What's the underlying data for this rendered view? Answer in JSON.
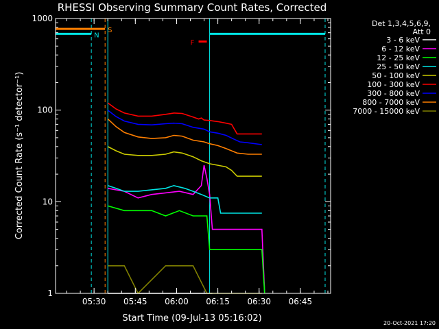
{
  "chart_data": {
    "type": "line",
    "title": "RHESSI Observing Summary Count Rates, Corrected",
    "xlabel": "Start Time (09-Jul-13 05:16:02)",
    "ylabel": "Corrected Count Rate (s⁻¹ detector⁻¹)",
    "x_range_min": [
      0,
      100
    ],
    "y_scale": "log",
    "ylim": [
      1,
      1000
    ],
    "y_ticks": [
      1,
      10,
      100,
      1000
    ],
    "y_tick_labels": [
      "1",
      "10",
      "100",
      "1000"
    ],
    "x_ticks_min": [
      14,
      29,
      44,
      59,
      74,
      89
    ],
    "x_tick_labels": [
      "05:30",
      "05:45",
      "06:00",
      "06:15",
      "06:30",
      "06:45"
    ],
    "legend": {
      "placement": "right",
      "header": [
        "Det 1,3,4,5,6,9,",
        "Att 0"
      ]
    },
    "markers": [
      {
        "label": "N",
        "color": "#00e5e5",
        "x_start": 0,
        "x_end": 13,
        "y": 680
      },
      {
        "label": "S",
        "color": "#ff7f00",
        "x_start": 0,
        "x_end": 18,
        "y": 770
      },
      {
        "label": "F",
        "color": "#ff0000",
        "x_start": 52,
        "x_end": 55,
        "y": 560
      },
      {
        "label": "",
        "color": "#00e5e5",
        "x_start": 56,
        "x_end": 98,
        "y": 680
      }
    ],
    "vlines": [
      {
        "x": 0,
        "color": "#00e5e5",
        "style": "solid"
      },
      {
        "x": 13,
        "color": "#00e5e5",
        "style": "dashed"
      },
      {
        "x": 18,
        "color": "#ff7f00",
        "style": "dashed"
      },
      {
        "x": 19,
        "color": "#00e5e5",
        "style": "solid"
      },
      {
        "x": 56,
        "color": "#00e5e5",
        "style": "solid"
      },
      {
        "x": 98,
        "color": "#00e5e5",
        "style": "dashed"
      }
    ],
    "series": [
      {
        "name": "3 - 6 keV",
        "color": "#ffffff",
        "points": [
          [
            19,
            1
          ],
          [
            56,
            1
          ],
          [
            57,
            1
          ]
        ]
      },
      {
        "name": "6 - 12 keV",
        "color": "#ff00ff",
        "points": [
          [
            19,
            14
          ],
          [
            25,
            13
          ],
          [
            30,
            11
          ],
          [
            35,
            12
          ],
          [
            40,
            12.5
          ],
          [
            45,
            13
          ],
          [
            50,
            12
          ],
          [
            53,
            15
          ],
          [
            54,
            25
          ],
          [
            55,
            18
          ],
          [
            56,
            12
          ],
          [
            57,
            5
          ],
          [
            70,
            5
          ],
          [
            75,
            5
          ],
          [
            76,
            1
          ]
        ]
      },
      {
        "name": "12 - 25 keV",
        "color": "#00ff00",
        "points": [
          [
            19,
            9
          ],
          [
            25,
            8
          ],
          [
            30,
            8
          ],
          [
            35,
            8
          ],
          [
            40,
            7
          ],
          [
            45,
            8
          ],
          [
            50,
            7
          ],
          [
            55,
            7
          ],
          [
            56,
            3
          ],
          [
            75,
            3
          ],
          [
            76,
            1
          ]
        ]
      },
      {
        "name": "25 - 50 keV",
        "color": "#00e5e5",
        "points": [
          [
            19,
            15
          ],
          [
            22,
            14
          ],
          [
            25,
            13
          ],
          [
            30,
            13
          ],
          [
            35,
            13.5
          ],
          [
            40,
            14
          ],
          [
            43,
            15
          ],
          [
            47,
            14
          ],
          [
            50,
            13
          ],
          [
            53,
            12
          ],
          [
            56,
            11
          ],
          [
            59,
            11
          ],
          [
            60,
            7.5
          ],
          [
            75,
            7.5
          ]
        ]
      },
      {
        "name": "50 - 100 keV",
        "color": "#cccc00",
        "points": [
          [
            19,
            40
          ],
          [
            22,
            36
          ],
          [
            25,
            33
          ],
          [
            30,
            32
          ],
          [
            35,
            32
          ],
          [
            40,
            33
          ],
          [
            43,
            35
          ],
          [
            46,
            34
          ],
          [
            50,
            31
          ],
          [
            53,
            28
          ],
          [
            56,
            26
          ],
          [
            59,
            25
          ],
          [
            62,
            24
          ],
          [
            64,
            22
          ],
          [
            66,
            19
          ],
          [
            75,
            19
          ]
        ]
      },
      {
        "name": "100 - 300 keV",
        "color": "#ff0000",
        "points": [
          [
            19,
            120
          ],
          [
            22,
            103
          ],
          [
            25,
            93
          ],
          [
            30,
            86
          ],
          [
            35,
            86
          ],
          [
            40,
            90
          ],
          [
            43,
            93
          ],
          [
            46,
            92
          ],
          [
            50,
            84
          ],
          [
            52,
            80
          ],
          [
            53,
            82
          ],
          [
            54,
            78
          ],
          [
            56,
            77
          ],
          [
            59,
            75
          ],
          [
            62,
            72
          ],
          [
            64,
            70
          ],
          [
            66,
            55
          ],
          [
            75,
            55
          ]
        ]
      },
      {
        "name": "300 - 800 keV",
        "color": "#0000ff",
        "points": [
          [
            19,
            100
          ],
          [
            22,
            85
          ],
          [
            25,
            76
          ],
          [
            30,
            70
          ],
          [
            35,
            69
          ],
          [
            40,
            71
          ],
          [
            43,
            72
          ],
          [
            46,
            71
          ],
          [
            50,
            65
          ],
          [
            54,
            62
          ],
          [
            56,
            58
          ],
          [
            59,
            56
          ],
          [
            62,
            53
          ],
          [
            65,
            48
          ],
          [
            67,
            45
          ],
          [
            70,
            44
          ],
          [
            75,
            42
          ]
        ]
      },
      {
        "name": "800 - 7000 keV",
        "color": "#ff7f00",
        "points": [
          [
            19,
            80
          ],
          [
            22,
            66
          ],
          [
            25,
            57
          ],
          [
            30,
            51
          ],
          [
            35,
            49
          ],
          [
            40,
            50
          ],
          [
            43,
            53
          ],
          [
            46,
            52
          ],
          [
            50,
            47
          ],
          [
            54,
            45
          ],
          [
            56,
            43
          ],
          [
            59,
            41
          ],
          [
            62,
            38
          ],
          [
            64,
            36
          ],
          [
            66,
            34
          ],
          [
            70,
            33
          ],
          [
            75,
            33
          ]
        ]
      },
      {
        "name": "7000 - 15000 keV",
        "color": "#808000",
        "points": [
          [
            19,
            2
          ],
          [
            25,
            2
          ],
          [
            30,
            1
          ],
          [
            40,
            2
          ],
          [
            50,
            2
          ],
          [
            55,
            1
          ],
          [
            60,
            1
          ],
          [
            75,
            1
          ]
        ]
      }
    ]
  },
  "footer_date": "20-Oct-2021 17:20"
}
